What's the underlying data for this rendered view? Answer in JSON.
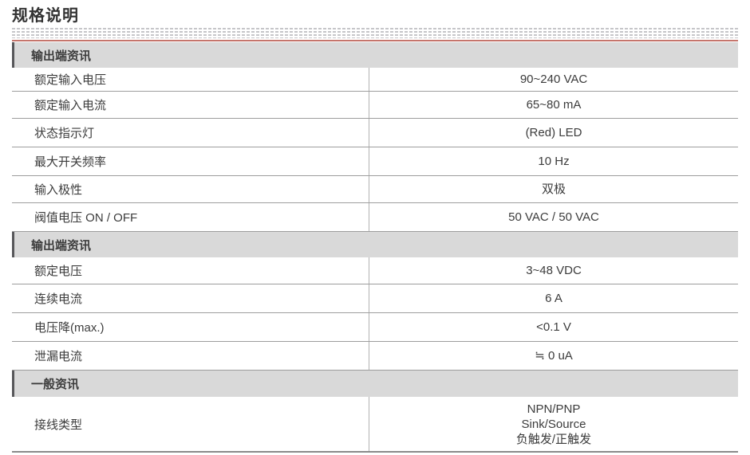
{
  "page": {
    "title": "规格说明"
  },
  "colors": {
    "accent_line": "#c5756c",
    "section_header_bg": "#d9d9d9",
    "section_header_edge": "#57575a",
    "row_border": "#9d9d9d",
    "column_divider": "#b3b3b3",
    "text": "#3c3c3c"
  },
  "table": {
    "sections": [
      {
        "header": "输出端资讯",
        "rows": [
          {
            "label": "额定输入电压",
            "value": "90~240 VAC"
          },
          {
            "label": "额定输入电流",
            "value": "65~80 mA"
          },
          {
            "label": "状态指示灯",
            "value": "(Red) LED"
          },
          {
            "label": "最大开关频率",
            "value": "10 Hz"
          },
          {
            "label": "输入极性",
            "value": "双极"
          },
          {
            "label": "阀值电压 ON / OFF",
            "value": "50 VAC / 50 VAC"
          }
        ]
      },
      {
        "header": "输出端资讯",
        "rows": [
          {
            "label": "额定电压",
            "value": "3~48 VDC"
          },
          {
            "label": "连续电流",
            "value": "6 A"
          },
          {
            "label": "电压降(max.)",
            "value": "<0.1 V"
          },
          {
            "label": "泄漏电流",
            "value": "≒ 0 uA"
          }
        ]
      },
      {
        "header": "一般资讯",
        "rows": [
          {
            "label": "接线类型",
            "value": "NPN/PNP\nSink/Source\n负触发/正触发"
          }
        ]
      }
    ]
  }
}
